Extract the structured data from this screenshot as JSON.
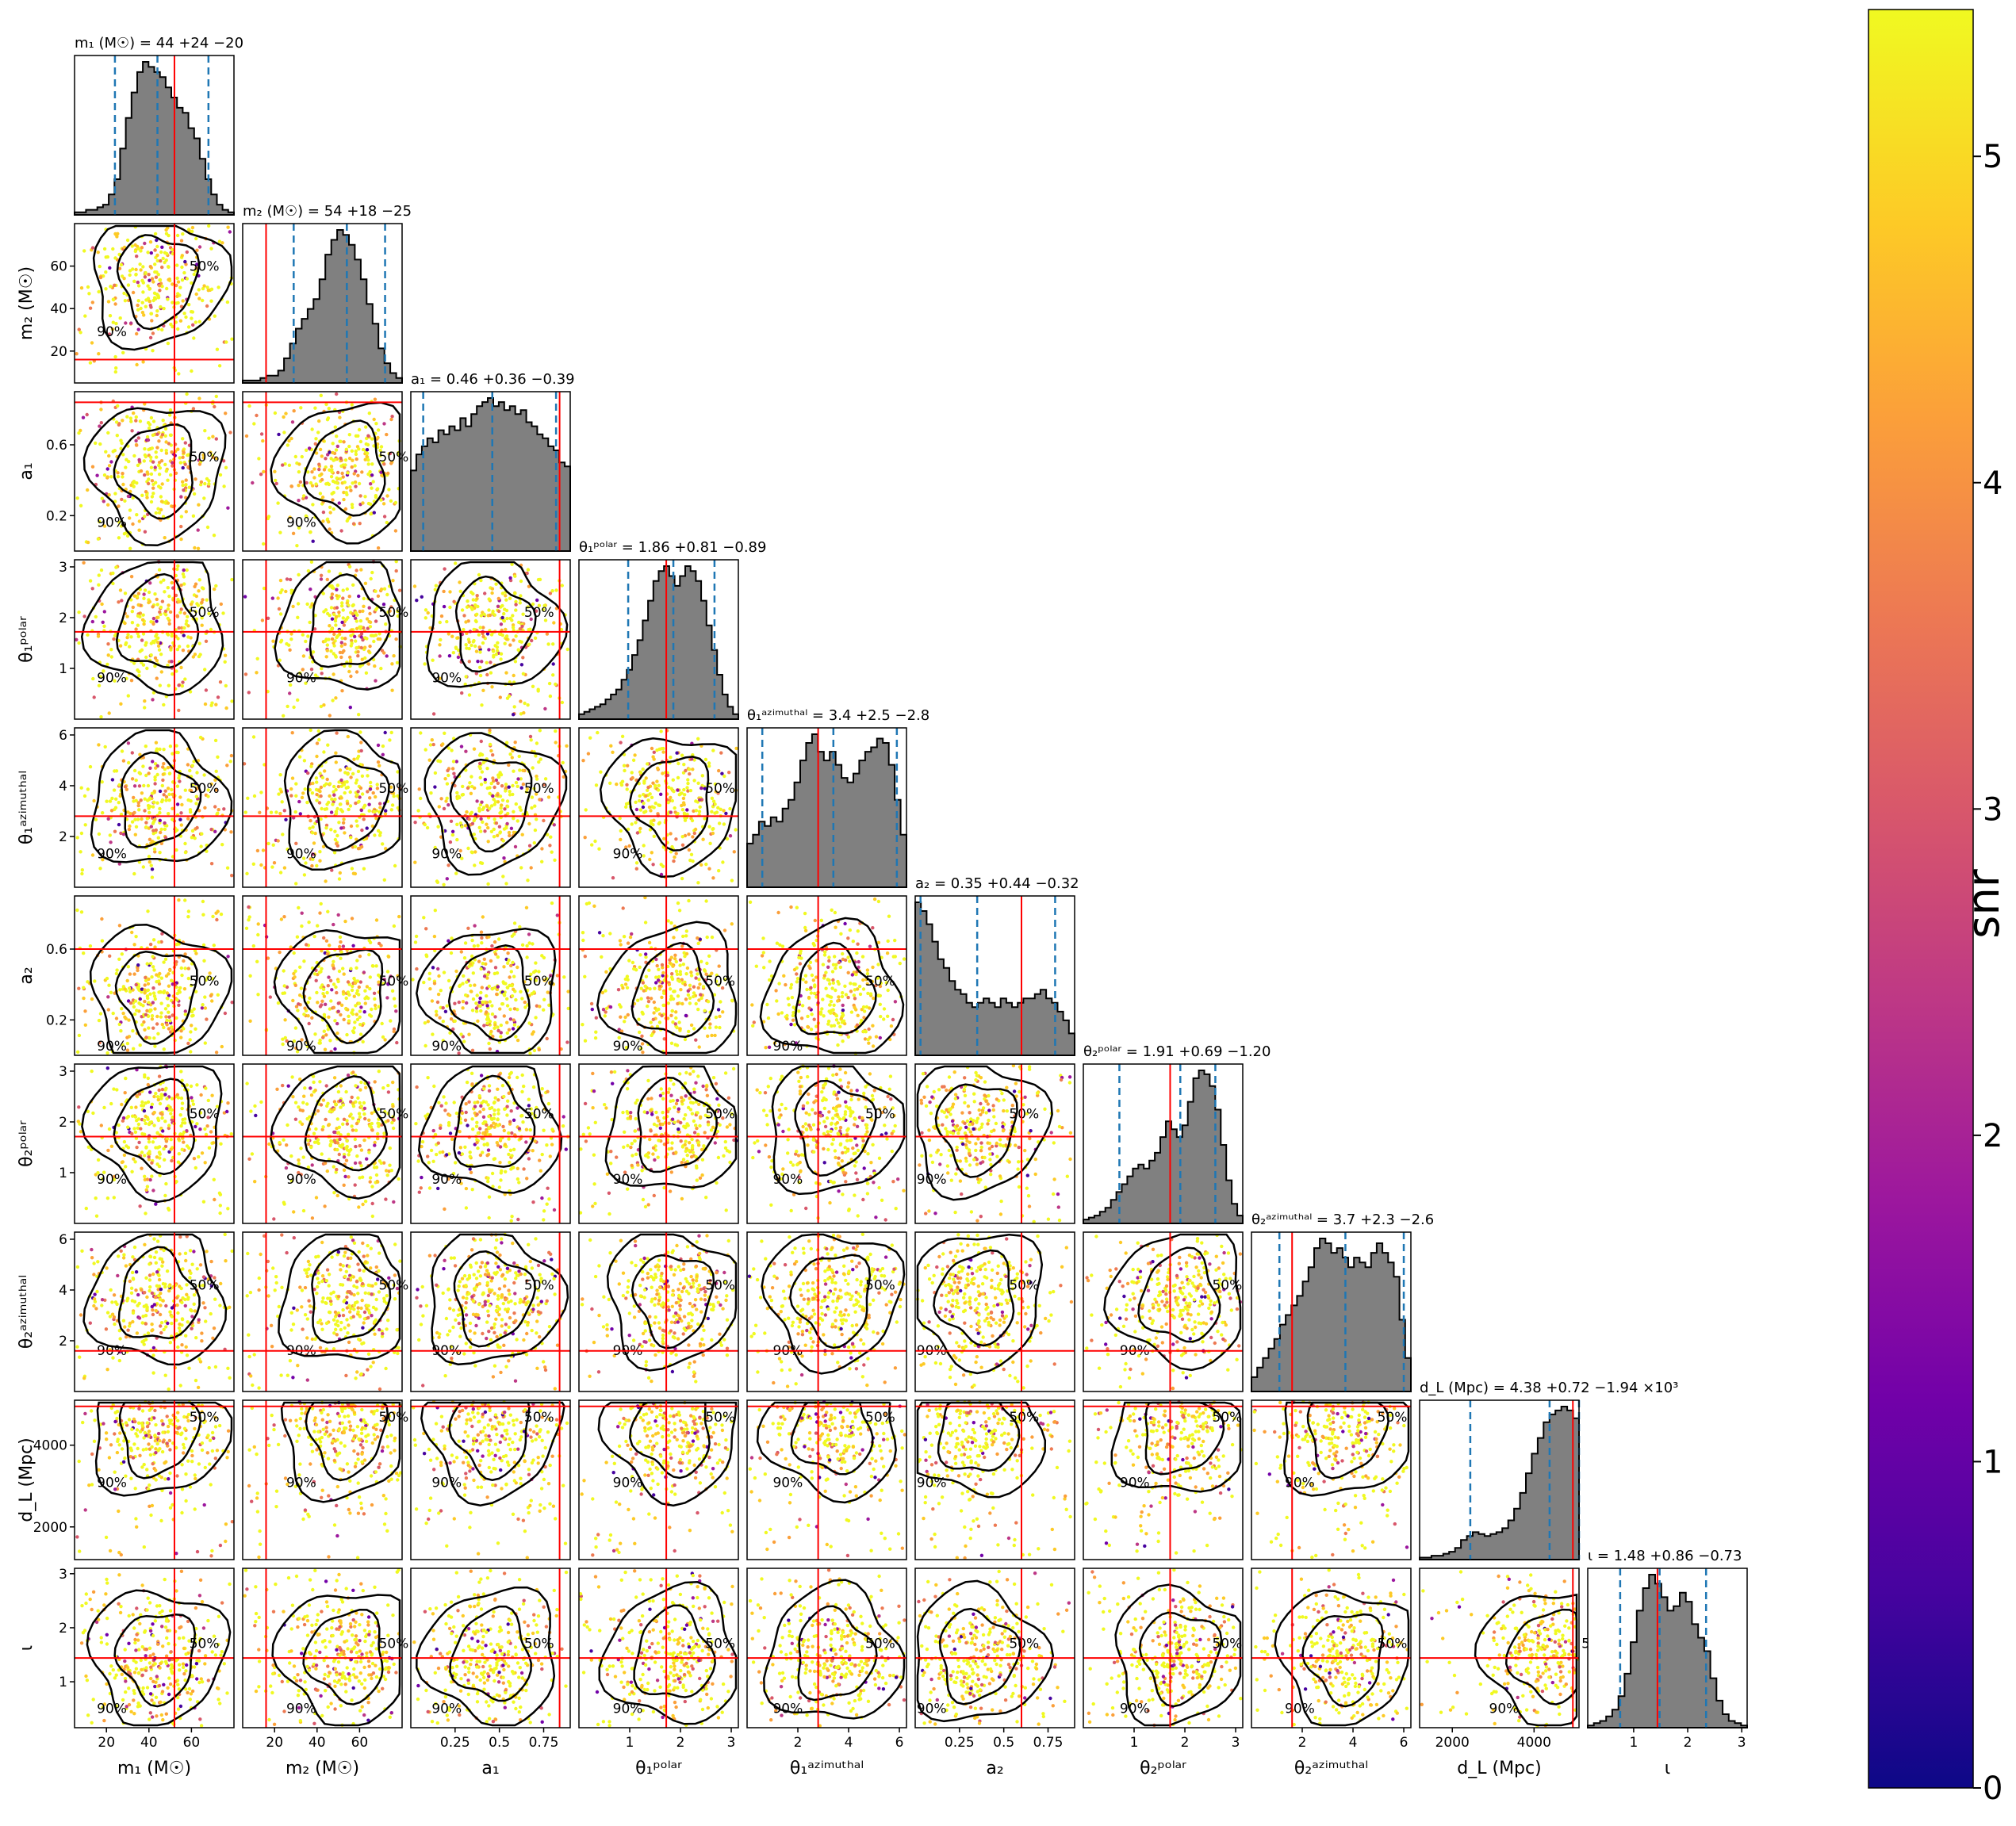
{
  "chart_data": {
    "type": "corner",
    "params": [
      {
        "key": "m1",
        "label": "m₁ (M☉)",
        "range": [
          5,
          80
        ],
        "ticks": [
          20,
          40,
          60
        ],
        "injection": 52,
        "median": 44,
        "lo": 24,
        "hi": 68,
        "title": "m₁ (M☉) = 44 +24 −20",
        "hist": [
          1,
          1,
          2,
          2,
          3,
          4,
          8,
          14,
          26,
          38,
          48,
          56,
          60,
          58,
          56,
          54,
          50,
          46,
          42,
          40,
          34,
          30,
          22,
          14,
          8,
          4,
          2,
          1
        ]
      },
      {
        "key": "m2",
        "label": "m₂ (M☉)",
        "range": [
          5,
          80
        ],
        "ticks": [
          20,
          40,
          60
        ],
        "injection": 16,
        "median": 54,
        "lo": 29,
        "hi": 72,
        "title": "m₂ (M☉) = 54 +18 −25",
        "hist": [
          1,
          1,
          1,
          2,
          3,
          3,
          5,
          10,
          16,
          22,
          26,
          30,
          34,
          42,
          52,
          58,
          62,
          60,
          56,
          50,
          42,
          32,
          24,
          14,
          8,
          4,
          2
        ]
      },
      {
        "key": "a1",
        "label": "a₁",
        "range": [
          0,
          0.9
        ],
        "ticks": [
          0.2,
          0.6
        ],
        "xticks": [
          0.25,
          0.5,
          0.75
        ],
        "injection": 0.84,
        "median": 0.46,
        "lo": 0.07,
        "hi": 0.82,
        "title": "a₁ = 0.46 +0.36 −0.39",
        "hist": [
          40,
          48,
          52,
          56,
          54,
          60,
          58,
          62,
          60,
          66,
          62,
          68,
          72,
          74,
          76,
          72,
          74,
          70,
          72,
          68,
          70,
          64,
          62,
          58,
          56,
          52,
          50,
          44,
          42
        ]
      },
      {
        "key": "t1p",
        "label": "θ₁ᵖᵒˡᵃʳ",
        "range": [
          0,
          3.14
        ],
        "ticks": [
          1,
          2,
          3
        ],
        "injection": 1.72,
        "median": 1.86,
        "lo": 0.97,
        "hi": 2.67,
        "title": "θ₁ᵖᵒˡᵃʳ = 1.86 +0.81 −0.89",
        "hist": [
          2,
          3,
          4,
          5,
          6,
          8,
          10,
          12,
          16,
          20,
          26,
          32,
          40,
          48,
          56,
          60,
          62,
          58,
          54,
          58,
          62,
          60,
          56,
          48,
          38,
          28,
          18,
          10,
          5,
          2
        ]
      },
      {
        "key": "t1a",
        "label": "θ₁ᵃᶻⁱᵐᵘᵗʰᵃˡ",
        "range": [
          0,
          6.28
        ],
        "ticks": [
          2,
          4,
          6
        ],
        "injection": 2.8,
        "median": 3.4,
        "lo": 0.6,
        "hi": 5.9,
        "title": "θ₁ᵃᶻⁱᵐᵘᵗʰᵃˡ = 3.4 +2.5 −2.8",
        "hist": [
          20,
          24,
          30,
          28,
          32,
          30,
          36,
          40,
          48,
          58,
          66,
          70,
          62,
          58,
          62,
          56,
          50,
          48,
          52,
          58,
          62,
          64,
          68,
          66,
          56,
          40,
          24
        ]
      },
      {
        "key": "a2",
        "label": "a₂",
        "range": [
          0,
          0.9
        ],
        "ticks": [
          0.2,
          0.6
        ],
        "xticks": [
          0.25,
          0.5,
          0.75
        ],
        "injection": 0.6,
        "median": 0.35,
        "lo": 0.03,
        "hi": 0.79,
        "title": "a₂ = 0.35 +0.44 −0.32",
        "hist": [
          70,
          66,
          60,
          52,
          44,
          40,
          34,
          30,
          28,
          24,
          22,
          24,
          26,
          24,
          22,
          26,
          24,
          22,
          24,
          26,
          26,
          28,
          30,
          26,
          24,
          20,
          16,
          10
        ]
      },
      {
        "key": "t2p",
        "label": "θ₂ᵖᵒˡᵃʳ",
        "range": [
          0,
          3.14
        ],
        "ticks": [
          1,
          2,
          3
        ],
        "injection": 1.71,
        "median": 1.91,
        "lo": 0.71,
        "hi": 2.6,
        "title": "θ₂ᵖᵒˡᵃʳ = 1.91 +0.69 −1.20",
        "hist": [
          2,
          3,
          4,
          6,
          8,
          12,
          16,
          20,
          24,
          28,
          30,
          28,
          32,
          36,
          44,
          52,
          48,
          44,
          50,
          62,
          74,
          78,
          76,
          70,
          58,
          40,
          22,
          10,
          4
        ]
      },
      {
        "key": "t2a",
        "label": "θ₂ᵃᶻⁱᵐᵘᵗʰᵃˡ",
        "range": [
          0,
          6.28
        ],
        "ticks": [
          2,
          4,
          6
        ],
        "injection": 1.6,
        "median": 3.7,
        "lo": 1.1,
        "hi": 6.0,
        "title": "θ₂ᵃᶻⁱᵐᵘᵗʰᵃˡ = 3.7 +2.3 −2.6",
        "hist": [
          6,
          10,
          14,
          18,
          22,
          28,
          32,
          36,
          40,
          46,
          52,
          60,
          64,
          62,
          58,
          60,
          56,
          52,
          56,
          54,
          52,
          58,
          62,
          58,
          54,
          48,
          30,
          14
        ]
      },
      {
        "key": "dl",
        "label": "d_L (Mpc)",
        "range": [
          1200,
          5100
        ],
        "ticks": [
          2000,
          4000
        ],
        "injection": 4950,
        "median": 4380,
        "lo": 2440,
        "hi": 5100,
        "title": "d_L (Mpc) = 4.38 +0.72 −1.94 ×10³",
        "hist": [
          1,
          1,
          2,
          2,
          3,
          4,
          6,
          10,
          12,
          14,
          13,
          12,
          13,
          14,
          16,
          20,
          26,
          34,
          44,
          54,
          62,
          70,
          74,
          76,
          78,
          76,
          72
        ]
      },
      {
        "key": "iota",
        "label": "ι",
        "range": [
          0.15,
          3.1
        ],
        "ticks": [
          1,
          2,
          3
        ],
        "injection": 1.44,
        "median": 1.48,
        "lo": 0.75,
        "hi": 2.34,
        "title": "ι = 1.48 +0.86 −0.73",
        "hist": [
          1,
          2,
          3,
          5,
          8,
          14,
          24,
          38,
          52,
          62,
          68,
          64,
          58,
          52,
          54,
          60,
          56,
          46,
          40,
          34,
          22,
          12,
          6,
          3,
          2,
          1
        ]
      }
    ]
  },
  "colorbar": {
    "label": "snr",
    "ticks": [
      "0",
      "1",
      "2",
      "3",
      "4",
      "5"
    ],
    "min": 0,
    "max": 5.45,
    "colors": [
      "#0d0887",
      "#46039f",
      "#7201a8",
      "#9c179e",
      "#bd3786",
      "#d8576b",
      "#ed7953",
      "#fb9f3a",
      "#fdca26",
      "#f0f921"
    ]
  },
  "contour_labels": [
    "50%",
    "90%"
  ],
  "colors": {
    "injection": "#ff0000",
    "quantile": "#1f77b4",
    "hist_fill": "#808080"
  }
}
